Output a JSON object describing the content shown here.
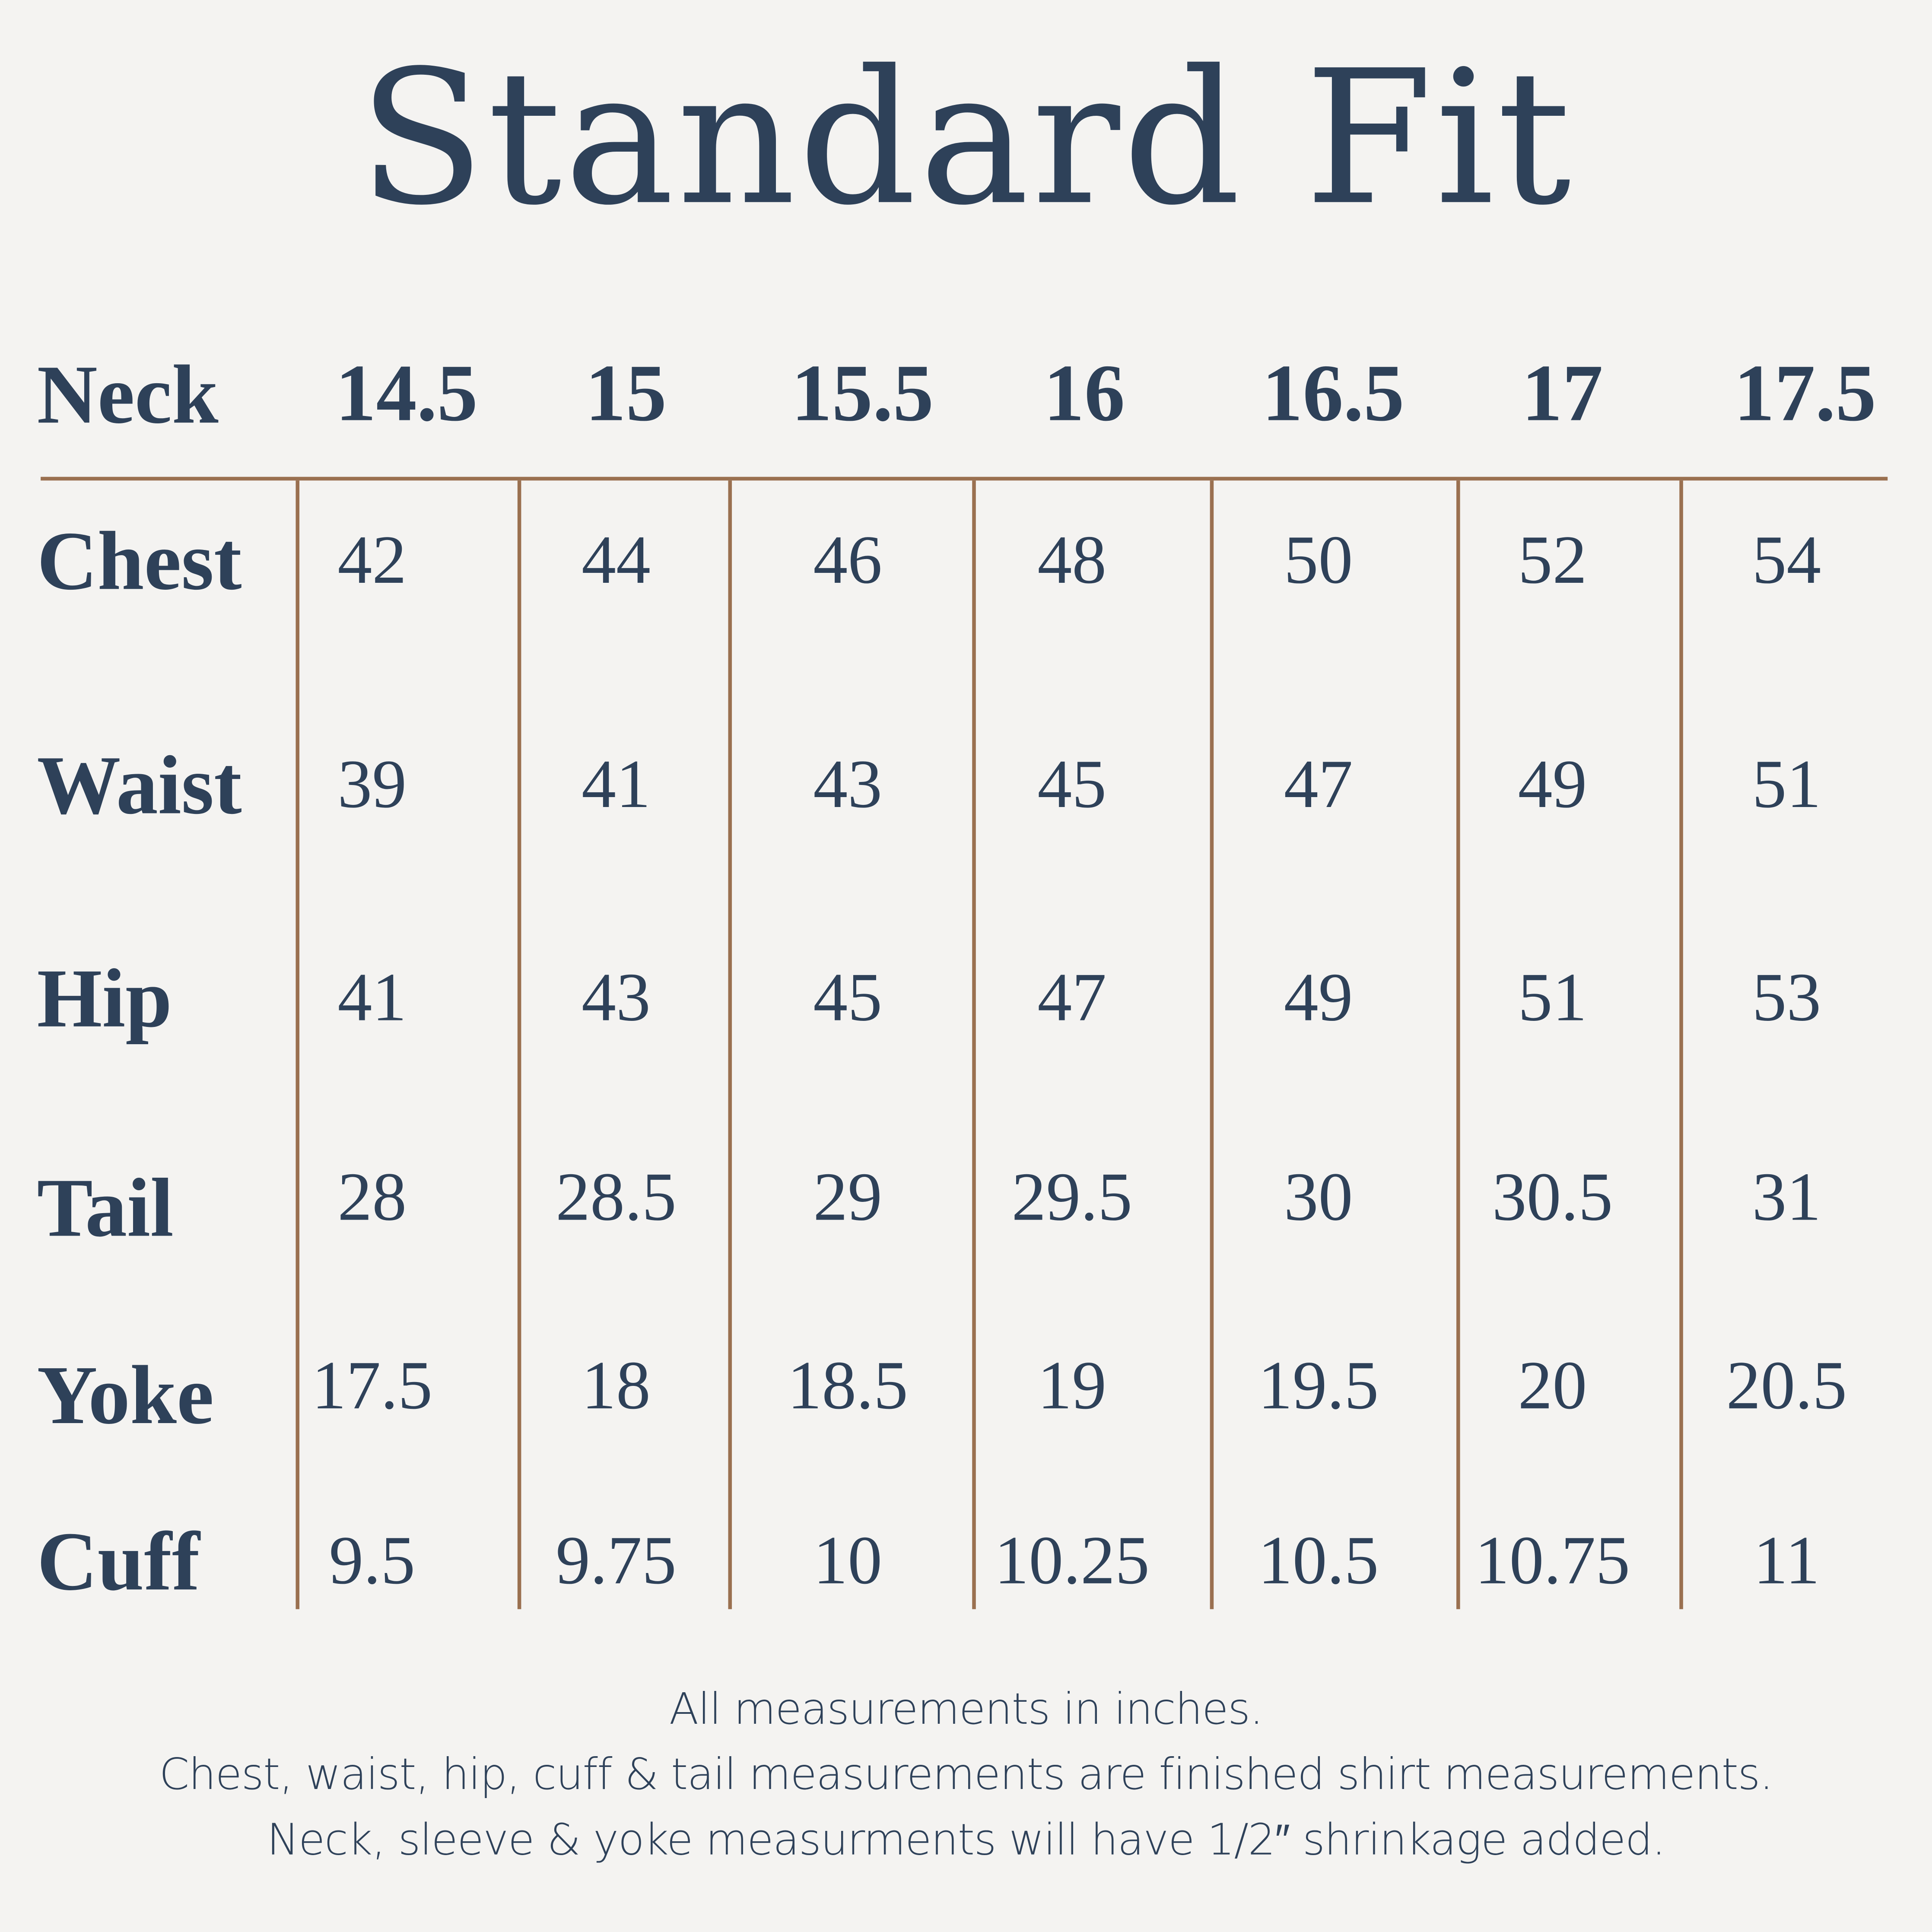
{
  "title": "Standard Fit",
  "colors": {
    "background": "#f4f3f1",
    "text": "#2e4159",
    "rule": "#9a7050"
  },
  "table": {
    "header_label": "Neck",
    "neck_sizes": [
      "14.5",
      "15",
      "15.5",
      "16",
      "16.5",
      "17",
      "17.5"
    ],
    "rows": [
      {
        "label": "Chest",
        "values": [
          "42",
          "44",
          "46",
          "48",
          "50",
          "52",
          "54"
        ]
      },
      {
        "label": "Waist",
        "values": [
          "39",
          "41",
          "43",
          "45",
          "47",
          "49",
          "51"
        ]
      },
      {
        "label": "Hip",
        "values": [
          "41",
          "43",
          "45",
          "47",
          "49",
          "51",
          "53"
        ]
      },
      {
        "label": "Tail",
        "values": [
          "28",
          "28.5",
          "29",
          "29.5",
          "30",
          "30.5",
          "31"
        ]
      },
      {
        "label": "Yoke",
        "values": [
          "17.5",
          "18",
          "18.5",
          "19",
          "19.5",
          "20",
          "20.5"
        ]
      },
      {
        "label": "Cuff",
        "values": [
          "9.5",
          "9.75",
          "10",
          "10.25",
          "10.5",
          "10.75",
          "11"
        ]
      }
    ]
  },
  "notes": [
    "All measurements in inches.",
    "Chest, waist, hip, cuff & tail measurements are finished shirt measurements.",
    "Neck, sleeve & yoke measurments will have 1/2″ shrinkage added."
  ]
}
